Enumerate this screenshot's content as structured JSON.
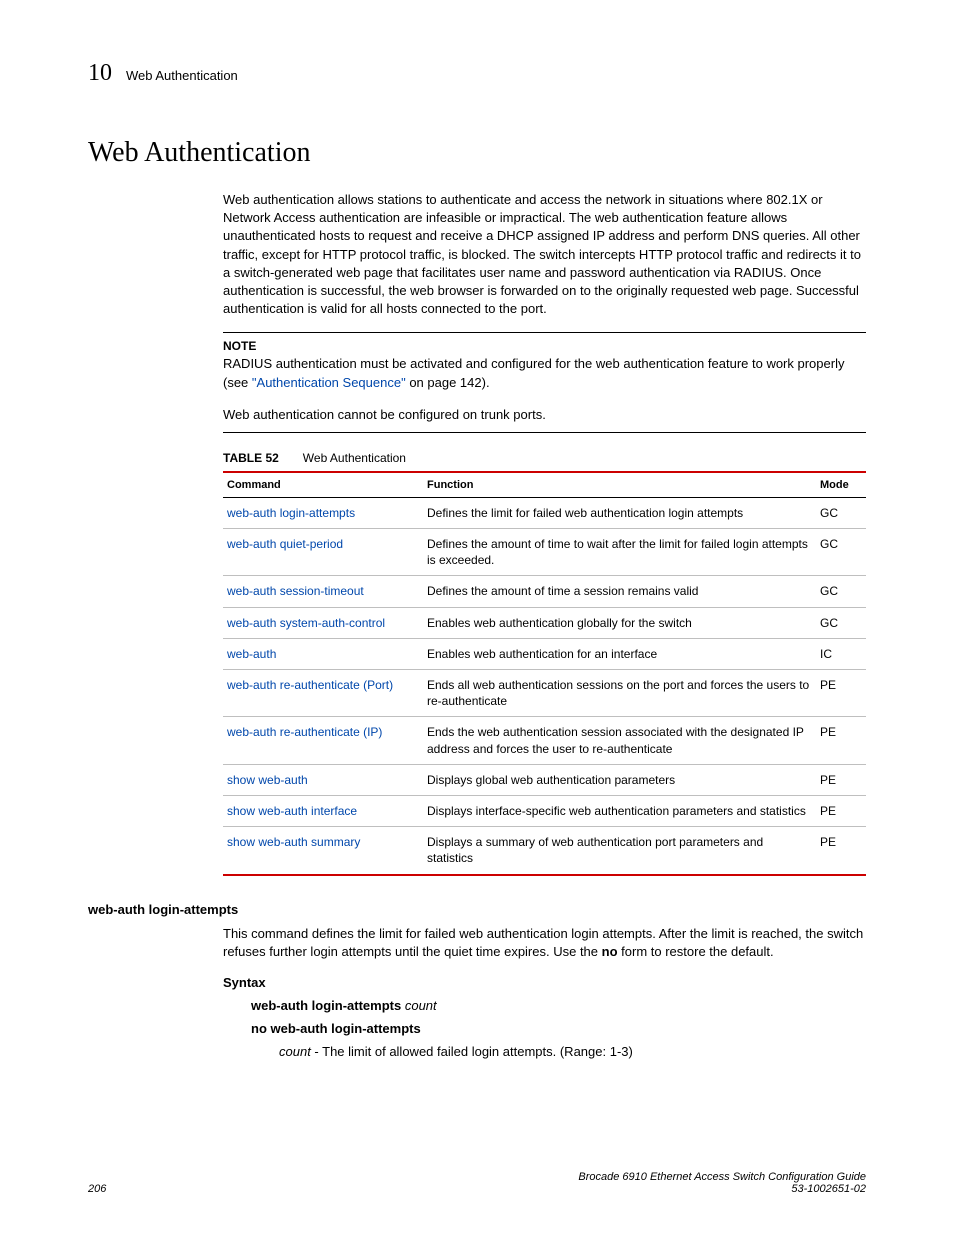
{
  "header": {
    "chapter_number": "10",
    "chapter_title": "Web Authentication"
  },
  "heading": "Web Authentication",
  "intro_para": "Web authentication allows stations to authenticate and access the network in situations where 802.1X or Network Access authentication are infeasible or impractical. The web authentication feature allows unauthenticated hosts to request and receive a DHCP assigned IP address and perform DNS queries. All other traffic, except for HTTP protocol traffic, is blocked. The switch intercepts HTTP protocol traffic and redirects it to a switch-generated web page that facilitates user name and password authentication via RADIUS. Once authentication is successful, the web browser is forwarded on to the originally requested web page. Successful authentication is valid for all hosts connected to the port.",
  "note": {
    "label": "NOTE",
    "text_before_link": "RADIUS authentication must be activated and configured for the web authentication feature to work properly (see ",
    "link_text": "\"Authentication Sequence\"",
    "text_after_link": " on page 142)."
  },
  "post_note_para": "Web authentication cannot be configured on trunk ports.",
  "table": {
    "label": "TABLE 52",
    "title": "Web Authentication",
    "headers": {
      "c1": "Command",
      "c2": "Function",
      "c3": "Mode"
    },
    "rows": [
      {
        "cmd": "web-auth login-attempts",
        "func": "Defines the limit for failed web authentication login attempts",
        "mode": "GC"
      },
      {
        "cmd": "web-auth quiet-period",
        "func": "Defines the amount of time to wait after the limit for failed login attempts is exceeded.",
        "mode": "GC"
      },
      {
        "cmd": "web-auth session-timeout",
        "func": "Defines the amount of time a session remains valid",
        "mode": "GC"
      },
      {
        "cmd": "web-auth system-auth-control",
        "func": "Enables web authentication globally for the switch",
        "mode": "GC"
      },
      {
        "cmd": "web-auth",
        "func": "Enables web authentication for an interface",
        "mode": "IC"
      },
      {
        "cmd": "web-auth re-authenticate (Port)",
        "func": "Ends all web authentication sessions on the port and forces the users to re-authenticate",
        "mode": "PE"
      },
      {
        "cmd": "web-auth re-authenticate (IP)",
        "func": "Ends the web authentication session associated with the designated IP address and forces the user to re-authenticate",
        "mode": "PE"
      },
      {
        "cmd": "show web-auth",
        "func": "Displays global web authentication parameters",
        "mode": "PE"
      },
      {
        "cmd": "show web-auth interface",
        "func": "Displays interface-specific web authentication parameters and statistics",
        "mode": "PE"
      },
      {
        "cmd": "show web-auth summary",
        "func": "Displays a summary of web authentication port parameters and statistics",
        "mode": "PE"
      }
    ]
  },
  "command_section": {
    "name": "web-auth login-attempts",
    "desc_before_no": "This command defines the limit for failed web authentication login attempts. After the limit is reached, the switch refuses further login attempts until the quiet time expires. Use the ",
    "no_word": "no",
    "desc_after_no": " form to restore the default.",
    "syntax_label": "Syntax",
    "syntax1_cmd": "web-auth login-attempts",
    "syntax1_arg": "count",
    "syntax2": "no web-auth login-attempts",
    "param_name": "count",
    "param_desc": " - The limit of allowed failed login attempts. (Range: 1-3)"
  },
  "footer": {
    "page": "206",
    "guide": "Brocade 6910 Ethernet Access Switch Configuration Guide",
    "docnum": "53-1002651-02"
  },
  "colors": {
    "link": "#0047ab",
    "table_border": "#cc0000",
    "row_border": "#bfbfbf"
  }
}
